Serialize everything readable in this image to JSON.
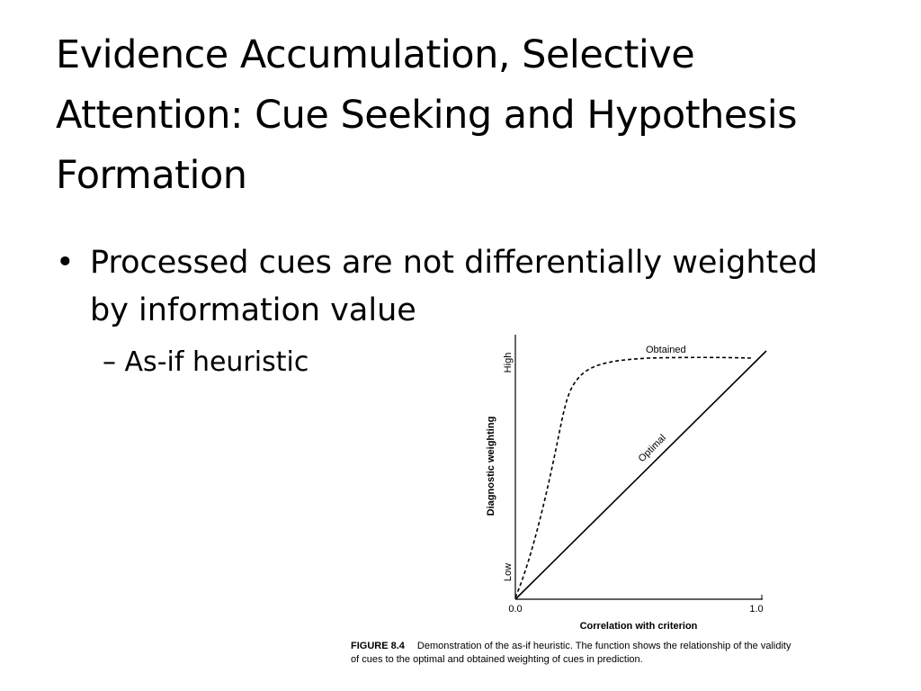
{
  "slide": {
    "title_lines": [
      "Evidence Accumulation, Selective",
      "Attention: Cue Seeking and Hypothesis",
      "Formation"
    ],
    "bullet_lines": [
      "Processed cues are not differentially weighted",
      "by information value"
    ],
    "bullet_symbol": "•",
    "sub_bullet": "– As-if heuristic"
  },
  "figure": {
    "label": "FIGURE 8.4",
    "caption_line1": "Demonstration of the as-if heuristic. The function shows the relationship of the validity",
    "caption_line2": "of cues to the optimal and obtained weighting of cues in prediction.",
    "xlabel": "Correlation with criterion",
    "ylabel": "Diagnostic weighting",
    "x_tick_low": "0.0",
    "x_tick_high": "1.0",
    "y_tick_low": "Low",
    "y_tick_high": "High",
    "obtained_label": "Obtained",
    "optimal_label": "Optimal"
  }
}
